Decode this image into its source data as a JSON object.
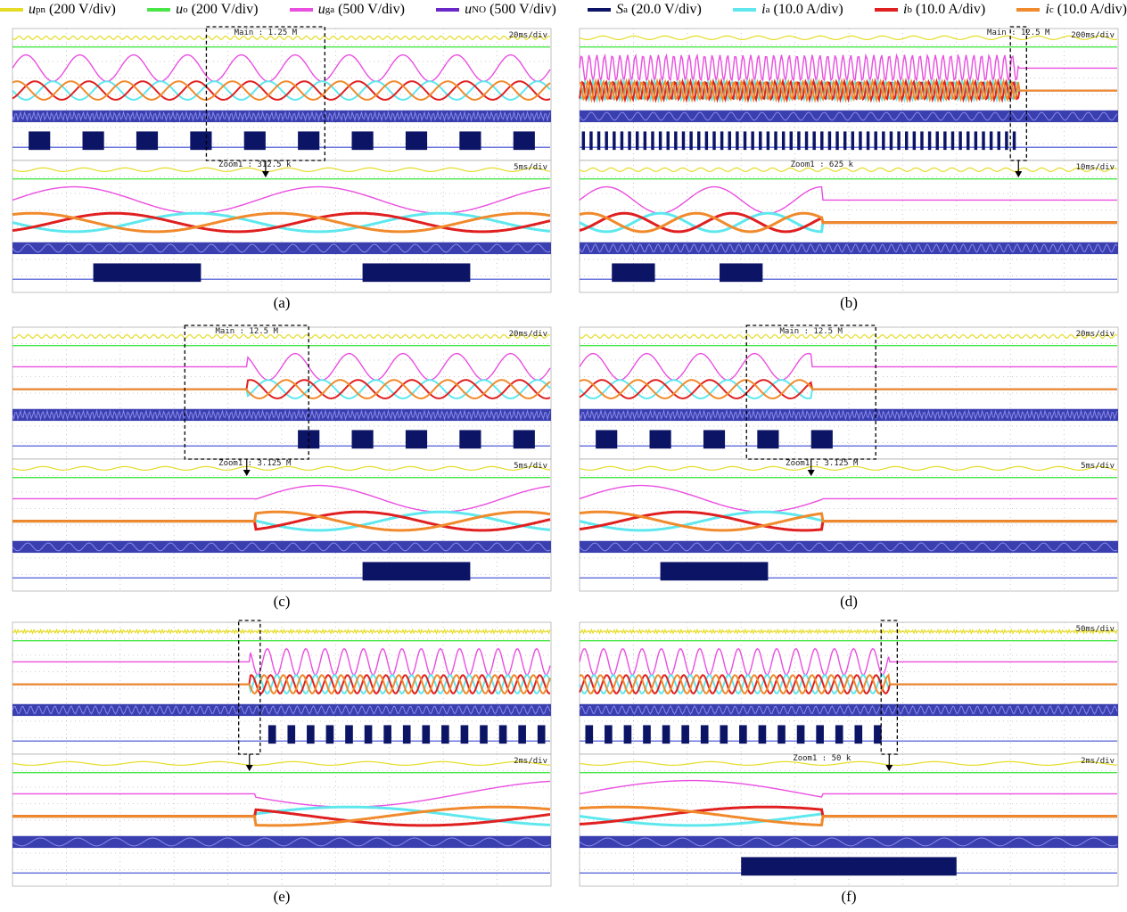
{
  "legend": [
    {
      "symbol": "u",
      "sub": "pn",
      "scale": "(200 V/div)",
      "color": "#e6dc28"
    },
    {
      "symbol": "u",
      "sub": "o",
      "scale": "(200 V/div)",
      "color": "#49e649"
    },
    {
      "symbol": "u",
      "sub": "ga",
      "scale": "(500 V/div)",
      "color": "#ea4fe0"
    },
    {
      "symbol": "u",
      "sub": "NO",
      "scale": "(500 V/div)",
      "color": "#6a28c8"
    },
    {
      "symbol": "S",
      "sub": "a",
      "scale": "(20.0 V/div)",
      "color": "#0c1466"
    },
    {
      "symbol": "i",
      "sub": "a",
      "scale": "(10.0 A/div)",
      "color": "#5ee8ee"
    },
    {
      "symbol": "i",
      "sub": "b",
      "scale": "(10.0 A/div)",
      "color": "#e02020"
    },
    {
      "symbol": "i",
      "sub": "c",
      "scale": "(10.0 A/div)",
      "color": "#f08a2c"
    }
  ],
  "panels": [
    {
      "caption": "(a)",
      "main_info": "Main : 1.25 M",
      "main_timebase": "20ms/div",
      "zoom_info": "Zoom1 : 312.5 k",
      "zoom_timebase": "5ms/div"
    },
    {
      "caption": "(b)",
      "main_info": "Main : 12.5 M",
      "main_timebase": "200ms/div",
      "zoom_info": "Zoom1 : 625 k",
      "zoom_timebase": "10ms/div"
    },
    {
      "caption": "(c)",
      "main_info": "Main : 12.5 M",
      "main_timebase": "20ms/div",
      "zoom_info": "Zoom1 : 3.125 M",
      "zoom_timebase": "5ms/div"
    },
    {
      "caption": "(d)",
      "main_info": "Main : 12.5 M",
      "main_timebase": "20ms/div",
      "zoom_info": "Zoom1 : 3.125 M",
      "zoom_timebase": "5ms/div"
    },
    {
      "caption": "(e)",
      "zoom_timebase": "2ms/div"
    },
    {
      "caption": "(f)",
      "main_timebase": "50ms/div",
      "zoom_info": "Zoom1 : 50 k",
      "zoom_timebase": "2ms/div"
    }
  ]
}
